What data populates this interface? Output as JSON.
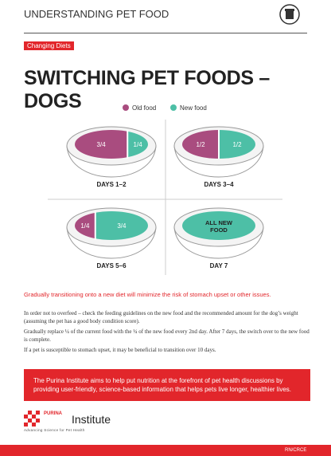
{
  "header": {
    "title": "UNDERSTANDING PET FOOD"
  },
  "tag": "Changing Diets",
  "title": "SWITCHING PET FOODS – DOGS",
  "legend": {
    "old": "Old food",
    "new": "New food"
  },
  "panels": [
    {
      "label": "DAYS 1–2",
      "old": "3/4",
      "new": "1/4"
    },
    {
      "label": "DAYS 3–4",
      "old": "1/2",
      "new": "1/2"
    },
    {
      "label": "DAYS 5–6",
      "old": "1/4",
      "new": "3/4"
    },
    {
      "label": "DAY 7",
      "new": "ALL NEW FOOD"
    }
  ],
  "intro": "Gradually transitioning onto a new diet will minimize the risk of stomach upset or other issues.",
  "paragraphs": [
    "In order not to overfeed – check the feeding guidelines on the new food and the recommended amount for the dog’s weight (assuming the pet has a good body condition score).",
    "Gradually replace ¼ of the current food with the ¼ of the new food every 2nd day. After 7 days, the switch over to the new food is complete.",
    "If a pet is susceptible to stomach upset, it may be beneficial to transition over 10 days."
  ],
  "banner": "The Purina Institute aims to help put nutrition at the forefront of pet health discussions by providing user-friendly, science-based information that helps pets live longer, healthier lives.",
  "logo": {
    "brand": "PURINA",
    "name": "Institute",
    "tagline": "Advancing Science for Pet Health"
  },
  "footer": "RN/CRCE"
}
